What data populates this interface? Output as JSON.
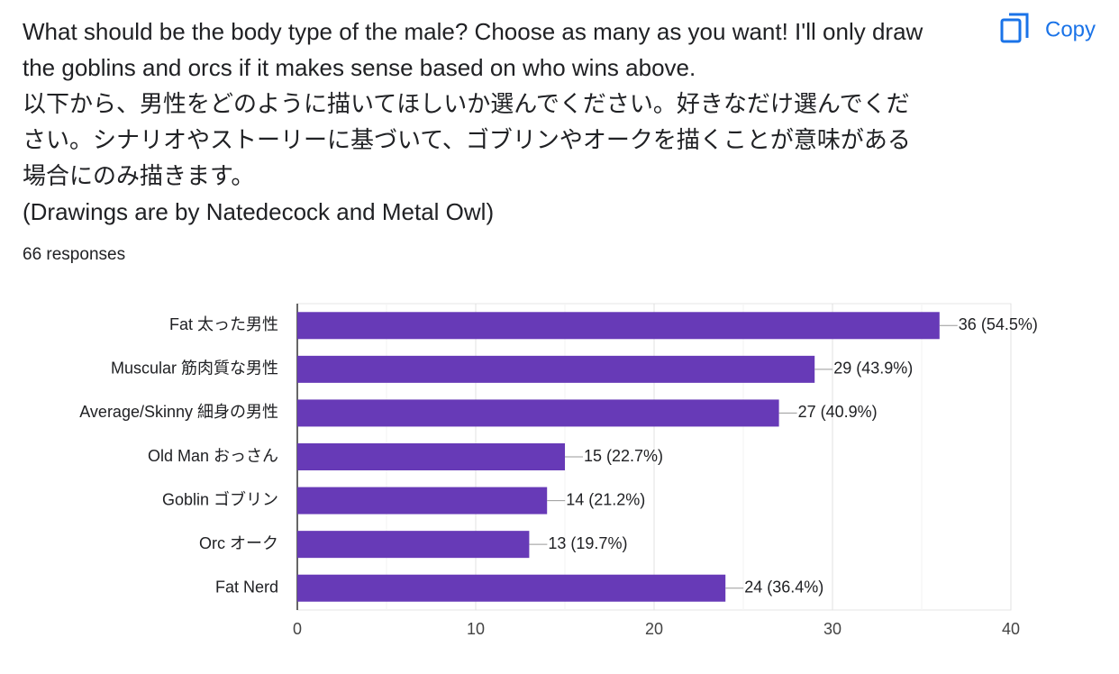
{
  "copy_button": "Copy",
  "chart_data": {
    "type": "bar",
    "orientation": "horizontal",
    "title": [
      "What should be the body type of the male? Choose as many as you want! I'll only draw",
      "the goblins and orcs if it makes sense based on who wins above.",
      "以下から、男性をどのように描いてほしいか選んでください。好きなだけ選んでくだ",
      "さい。シナリオやストーリーに基づいて、ゴブリンやオークを描くことが意味がある",
      "場合にのみ描きます。",
      "(Drawings are by Natedecock and Metal Owl)"
    ],
    "subtitle": "66 responses",
    "categories": [
      "Fat 太った男性",
      "Muscular 筋肉質な男性",
      "Average/Skinny 細身の男性",
      "Old Man おっさん",
      "Goblin ゴブリン",
      "Orc オーク",
      "Fat Nerd"
    ],
    "values": [
      36,
      29,
      27,
      15,
      14,
      13,
      24
    ],
    "value_labels": [
      "36 (54.5%)",
      "29 (43.9%)",
      "27 (40.9%)",
      "15 (22.7%)",
      "14 (21.2%)",
      "13 (19.7%)",
      "24 (36.4%)"
    ],
    "color": "#673ab7",
    "xlim": [
      0,
      40
    ],
    "xticks": [
      0,
      10,
      20,
      30,
      40
    ],
    "minor_ticks": [
      5,
      15,
      25,
      35
    ],
    "grid": true
  }
}
